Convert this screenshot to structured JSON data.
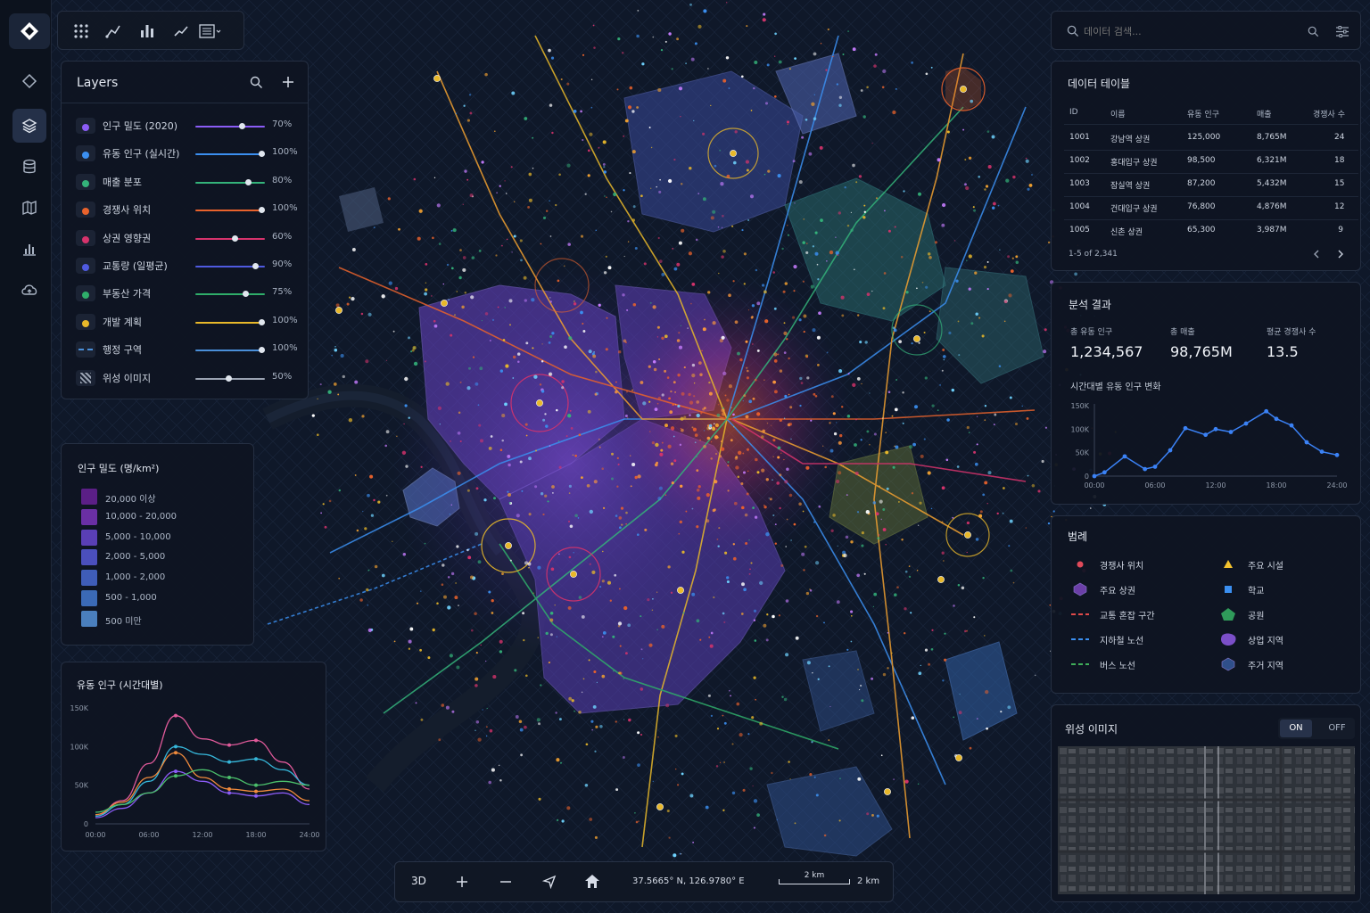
{
  "toolbar": {
    "icons": [
      "apps-grid-icon",
      "route-icon",
      "bar-chart-icon",
      "line-chart-icon",
      "list-icon"
    ]
  },
  "sidebar": {
    "items": [
      "logo-icon",
      "diamond-icon",
      "layers-icon",
      "database-icon",
      "map-icon",
      "analytics-icon",
      "cloud-upload-icon"
    ],
    "active": "layers-icon"
  },
  "layers": {
    "title": "Layers",
    "items": [
      {
        "label": "인구 밀도 (2020)",
        "pct": "70%",
        "value": 0.7,
        "color": "#8b5cf6",
        "kind": "dot"
      },
      {
        "label": "유동 인구 (실시간)",
        "pct": "100%",
        "value": 1.0,
        "color": "#3b8ff0",
        "kind": "dot"
      },
      {
        "label": "매출 분포",
        "pct": "80%",
        "value": 0.8,
        "color": "#34b37a",
        "kind": "dot"
      },
      {
        "label": "경쟁사 위치",
        "pct": "100%",
        "value": 1.0,
        "color": "#e8622c",
        "kind": "dot"
      },
      {
        "label": "상권 영향권",
        "pct": "60%",
        "value": 0.6,
        "color": "#d6336c",
        "kind": "dot"
      },
      {
        "label": "교통량 (일평균)",
        "pct": "90%",
        "value": 0.9,
        "color": "#4f5ae0",
        "kind": "dot"
      },
      {
        "label": "부동산 가격",
        "pct": "75%",
        "value": 0.75,
        "color": "#2fae6a",
        "kind": "dot"
      },
      {
        "label": "개발 계획",
        "pct": "100%",
        "value": 1.0,
        "color": "#e8b82a",
        "kind": "dot"
      },
      {
        "label": "행정 구역",
        "pct": "100%",
        "value": 1.0,
        "color": "#4a8fd9",
        "kind": "dash"
      },
      {
        "label": "위성 이미지",
        "pct": "50%",
        "value": 0.5,
        "color": "#9aa3b2",
        "kind": "hatch"
      }
    ]
  },
  "density": {
    "title": "인구 밀도 (명/km²)",
    "items": [
      {
        "label": "20,000 이상",
        "color": "#5b1f86"
      },
      {
        "label": "10,000 - 20,000",
        "color": "#6a2fa4"
      },
      {
        "label": "5,000 - 10,000",
        "color": "#5a3fb5"
      },
      {
        "label": "2,000 - 5,000",
        "color": "#4b4fbd"
      },
      {
        "label": "1,000 - 2,000",
        "color": "#3f5db8"
      },
      {
        "label": "500 - 1,000",
        "color": "#3b6ab6"
      },
      {
        "label": "500 미만",
        "color": "#4a7fbd"
      }
    ]
  },
  "floating_chart": {
    "title": "유동 인구 (시간대별)",
    "chart_data": {
      "type": "line",
      "x": [
        "00:00",
        "03:00",
        "06:00",
        "09:00",
        "12:00",
        "15:00",
        "18:00",
        "21:00",
        "24:00"
      ],
      "x_ticks": [
        "00:00",
        "06:00",
        "12:00",
        "18:00",
        "24:00"
      ],
      "y_ticks": [
        "0",
        "50K",
        "100K",
        "150K"
      ],
      "ylim": [
        0,
        150000
      ],
      "series": [
        {
          "color": "#e05a9a",
          "values": [
            10000,
            30000,
            78000,
            140000,
            110000,
            102000,
            108000,
            80000,
            45000
          ]
        },
        {
          "color": "#36b6d9",
          "values": [
            10000,
            25000,
            55000,
            100000,
            90000,
            80000,
            84000,
            70000,
            50000
          ]
        },
        {
          "color": "#f08a3c",
          "values": [
            12000,
            28000,
            60000,
            92000,
            60000,
            45000,
            42000,
            45000,
            30000
          ]
        },
        {
          "color": "#8b5cf6",
          "values": [
            8000,
            20000,
            40000,
            68000,
            55000,
            40000,
            36000,
            40000,
            25000
          ]
        },
        {
          "color": "#4bbf6b",
          "values": [
            15000,
            25000,
            40000,
            62000,
            70000,
            60000,
            50000,
            55000,
            50000
          ]
        }
      ]
    }
  },
  "search": {
    "placeholder": "데이터 검색..."
  },
  "data_table": {
    "title": "데이터 테이블",
    "headers": [
      "ID",
      "이름",
      "유동 인구",
      "매출",
      "경쟁사 수"
    ],
    "rows": [
      [
        "1001",
        "강남역 상권",
        "125,000",
        "8,765M",
        "24"
      ],
      [
        "1002",
        "홍대입구 상권",
        "98,500",
        "6,321M",
        "18"
      ],
      [
        "1003",
        "잠실역 상권",
        "87,200",
        "5,432M",
        "15"
      ],
      [
        "1004",
        "건대입구 상권",
        "76,800",
        "4,876M",
        "12"
      ],
      [
        "1005",
        "신촌 상권",
        "65,300",
        "3,987M",
        "9"
      ]
    ],
    "pagination": "1-5 of 2,341"
  },
  "analysis": {
    "title": "분석 결과",
    "stats": [
      {
        "label": "총 유동 인구",
        "value": "1,234,567"
      },
      {
        "label": "총 매출",
        "value": "98,765M"
      },
      {
        "label": "평균 경쟁사 수",
        "value": "13.5"
      }
    ],
    "chart_title": "시간대별 유동 인구 변화",
    "chart_data": {
      "type": "line",
      "x_ticks": [
        "00:00",
        "06:00",
        "12:00",
        "18:00",
        "24:00"
      ],
      "y_ticks": [
        "0",
        "50K",
        "100K",
        "150K"
      ],
      "ylim": [
        0,
        150000
      ],
      "xlim": [
        0,
        24
      ],
      "color": "#3b82f6",
      "x": [
        0,
        1,
        3,
        5,
        6,
        7.5,
        9,
        11,
        12,
        13.5,
        15,
        17,
        18,
        19.5,
        21,
        22.5,
        24
      ],
      "values": [
        0,
        8000,
        42000,
        15000,
        20000,
        55000,
        102000,
        88000,
        100000,
        94000,
        112000,
        138000,
        122000,
        108000,
        72000,
        52000,
        45000
      ]
    }
  },
  "legend": {
    "title": "범례",
    "items": [
      {
        "label": "경쟁사 위치",
        "shape": "dot",
        "color": "#e04a5a"
      },
      {
        "label": "주요 시설",
        "shape": "triangle",
        "color": "#f2c12e"
      },
      {
        "label": "주요 상권",
        "shape": "hexagon",
        "color": "#6b3fa8"
      },
      {
        "label": "학교",
        "shape": "square",
        "color": "#3b8ff0"
      },
      {
        "label": "교통 혼잡 구간",
        "shape": "dash",
        "color": "#e04a4a"
      },
      {
        "label": "공원",
        "shape": "pentagon",
        "color": "#2f9a5a"
      },
      {
        "label": "지하철 노선",
        "shape": "dash",
        "color": "#3b8ff0"
      },
      {
        "label": "상업 지역",
        "shape": "blob",
        "color": "#7b4fc8"
      },
      {
        "label": "버스 노선",
        "shape": "dash",
        "color": "#3fae5a"
      },
      {
        "label": "주거 지역",
        "shape": "hexagon",
        "color": "#2f4f8a"
      }
    ]
  },
  "satellite": {
    "title": "위성 이미지",
    "on_label": "ON",
    "off_label": "OFF",
    "state": "ON"
  },
  "map_controls": {
    "mode_label": "3D",
    "coordinates": "37.5665° N, 126.9780° E",
    "scale_label": "2 km",
    "scale_bar_label": "2 km"
  },
  "colors": {
    "accent": "#3b82f6",
    "panel": "#0e1421",
    "border": "#252f42"
  }
}
